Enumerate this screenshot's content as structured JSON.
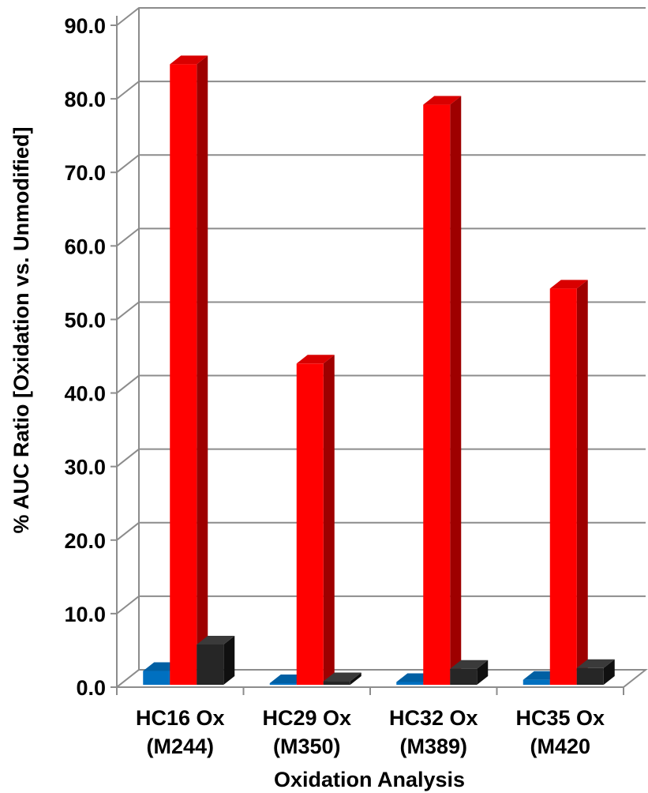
{
  "chart_data": {
    "type": "bar",
    "categories": [
      [
        "HC16 Ox",
        "(M244)"
      ],
      [
        "HC29 Ox",
        "(M350)"
      ],
      [
        "HC32 Ox",
        "(M389)"
      ],
      [
        "HC35 Ox",
        "(M420"
      ]
    ],
    "series": [
      {
        "values": [
          2.2,
          0.1,
          0.7,
          1.0
        ],
        "color": "#0070C0"
      },
      {
        "values": [
          84.7,
          44.0,
          79.2,
          54.2
        ],
        "color": "#FF0000"
      },
      {
        "values": [
          5.8,
          0.8,
          2.5,
          2.6
        ],
        "color": "#262626"
      }
    ],
    "yticks": [
      "0.0",
      "10.0",
      "20.0",
      "30.0",
      "40.0",
      "50.0",
      "60.0",
      "70.0",
      "80.0",
      "90.0"
    ],
    "ylim": [
      0,
      90
    ],
    "xlabel": "Oxidation Analysis",
    "ylabel": "% AUC Ratio [Oxidation vs. Unmodified]",
    "grid": true
  }
}
